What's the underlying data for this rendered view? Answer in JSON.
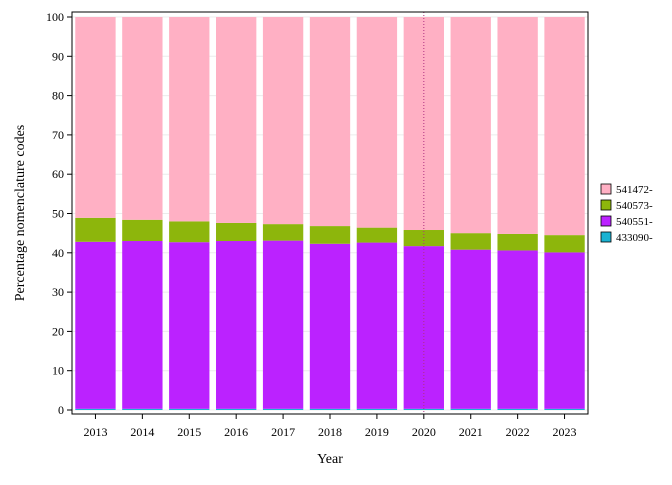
{
  "chart_data": {
    "type": "bar",
    "stacked": true,
    "percent": true,
    "xlabel": "Year",
    "ylabel": "Percentage nomenclature codes",
    "ylim": [
      0,
      100
    ],
    "yticks": [
      0,
      10,
      20,
      30,
      40,
      50,
      60,
      70,
      80,
      90,
      100
    ],
    "categories": [
      "2013",
      "2014",
      "2015",
      "2016",
      "2017",
      "2018",
      "2019",
      "2020",
      "2021",
      "2022",
      "2023"
    ],
    "series": [
      {
        "name": "433090-",
        "color": "#1ab2d2",
        "values": [
          0.3,
          0.3,
          0.3,
          0.3,
          0.3,
          0.3,
          0.3,
          0.3,
          0.3,
          0.3,
          0.3
        ]
      },
      {
        "name": "540551-",
        "color": "#bb22ff",
        "values": [
          42.5,
          42.7,
          42.4,
          42.7,
          42.8,
          42.0,
          42.3,
          41.4,
          40.5,
          40.3,
          39.8
        ]
      },
      {
        "name": "540573-",
        "color": "#8db60c",
        "values": [
          6.1,
          5.4,
          5.3,
          4.6,
          4.2,
          4.5,
          3.8,
          4.1,
          4.2,
          4.2,
          4.4
        ]
      },
      {
        "name": "541472-",
        "color": "#ffb0c4",
        "values": [
          51.1,
          51.6,
          52.0,
          52.4,
          52.7,
          53.2,
          53.6,
          54.2,
          55.0,
          55.2,
          55.5
        ]
      }
    ],
    "marker_line": {
      "x": "2020",
      "color": "#b03080",
      "style": "dotted"
    },
    "legend": {
      "placement": "right",
      "order": [
        "541472-",
        "540573-",
        "540551-",
        "433090-"
      ]
    },
    "grid": true
  }
}
